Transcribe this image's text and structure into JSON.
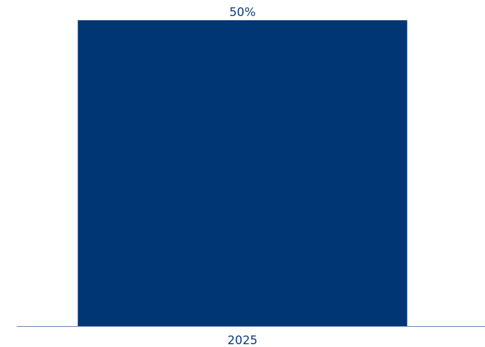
{
  "chart_data": {
    "type": "bar",
    "categories": [
      "2025"
    ],
    "values": [
      50
    ],
    "data_labels": [
      "50%"
    ],
    "ylim": [
      0,
      50
    ],
    "grid": false,
    "colors": {
      "bar": "#003673",
      "axis": "#5b86b3",
      "text": "#0b3c78"
    }
  }
}
